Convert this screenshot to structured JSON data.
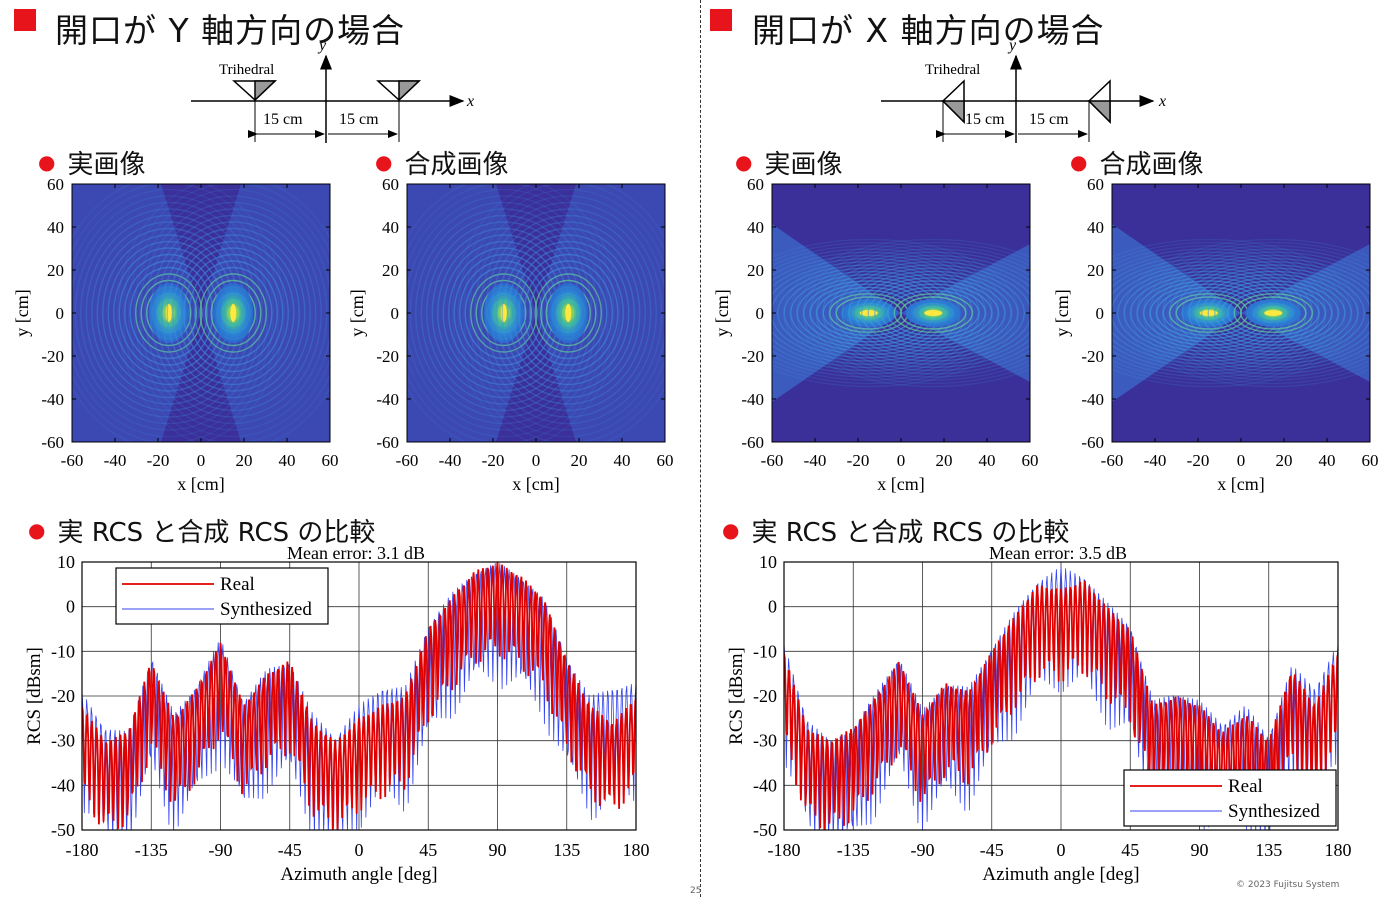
{
  "left": {
    "heading": "開口が Y 軸方向の場合",
    "diagram": {
      "target_label": "Trihedral",
      "dist1": "15 cm",
      "dist2": "15 cm",
      "x_axis": "x",
      "y_axis": "y"
    },
    "real_label": "実画像",
    "synth_label": "合成画像",
    "compare_label": "実 RCS と合成 RCS の比較",
    "mean_error": "Mean error: 3.1 dB"
  },
  "right": {
    "heading": "開口が X 軸方向の場合",
    "diagram": {
      "target_label": "Trihedral",
      "dist1": "15 cm",
      "dist2": "15 cm",
      "x_axis": "x",
      "y_axis": "y"
    },
    "real_label": "実画像",
    "synth_label": "合成画像",
    "compare_label": "実 RCS と合成 RCS の比較",
    "mean_error": "Mean error: 3.5 dB"
  },
  "image_axes": {
    "xlabel": "x [cm]",
    "ylabel": "y [cm]",
    "ticks": [
      "-60",
      "-40",
      "-20",
      "0",
      "20",
      "40",
      "60"
    ],
    "yticks": [
      "60",
      "40",
      "20",
      "0",
      "-20",
      "-40",
      "-60"
    ]
  },
  "footer": {
    "page_number": "25",
    "copyright": "© 2023 Fujitsu System"
  },
  "colors": {
    "real": "#e00000",
    "synth": "#3344ee",
    "bullet": "#e8141c",
    "image_bg": "#3b2f9a"
  },
  "chart_data": [
    {
      "type": "line",
      "title": "Mean error: 3.1 dB",
      "xlabel": "Azimuth angle [deg]",
      "ylabel": "RCS [dBsm]",
      "xlim": [
        -180,
        180
      ],
      "ylim": [
        -50,
        10
      ],
      "xticks": [
        "-180",
        "-135",
        "-90",
        "-45",
        "0",
        "45",
        "90",
        "135",
        "180"
      ],
      "yticks": [
        "10",
        "0",
        "-10",
        "-20",
        "-30",
        "-40",
        "-50"
      ],
      "legend": "top-left",
      "series": [
        {
          "name": "Real",
          "x": [
            -180,
            -165,
            -150,
            -135,
            -120,
            -105,
            -90,
            -75,
            -60,
            -45,
            -30,
            -15,
            0,
            15,
            30,
            45,
            60,
            75,
            90,
            105,
            120,
            135,
            150,
            165,
            180
          ],
          "values": [
            -22,
            -30,
            -28,
            -12,
            -25,
            -18,
            -8,
            -22,
            -15,
            -12,
            -26,
            -30,
            -25,
            -22,
            -20,
            -5,
            2,
            8,
            10,
            7,
            2,
            -12,
            -22,
            -26,
            -20
          ]
        },
        {
          "name": "Synthesized",
          "x": [
            -180,
            -165,
            -150,
            -135,
            -120,
            -105,
            -90,
            -75,
            -60,
            -45,
            -30,
            -15,
            0,
            15,
            30,
            45,
            60,
            75,
            90,
            105,
            120,
            135,
            150,
            165,
            180
          ],
          "values": [
            -19,
            -27,
            -28,
            -11,
            -24,
            -17,
            -7,
            -21,
            -14,
            -12,
            -24,
            -29,
            -22,
            -18,
            -18,
            -4,
            3,
            8,
            10,
            7,
            2,
            -11,
            -20,
            -18,
            -17
          ]
        }
      ]
    },
    {
      "type": "line",
      "title": "Mean error: 3.5 dB",
      "xlabel": "Azimuth angle [deg]",
      "ylabel": "RCS [dBsm]",
      "xlim": [
        -180,
        180
      ],
      "ylim": [
        -50,
        10
      ],
      "xticks": [
        "-180",
        "-135",
        "-90",
        "-45",
        "0",
        "45",
        "90",
        "135",
        "180"
      ],
      "yticks": [
        "10",
        "0",
        "-10",
        "-20",
        "-30",
        "-40",
        "-50"
      ],
      "legend": "bottom-right",
      "series": [
        {
          "name": "Real",
          "x": [
            -180,
            -165,
            -150,
            -135,
            -120,
            -105,
            -90,
            -75,
            -60,
            -45,
            -30,
            -15,
            0,
            15,
            30,
            45,
            60,
            75,
            90,
            105,
            120,
            135,
            150,
            165,
            180
          ],
          "values": [
            -10,
            -27,
            -30,
            -27,
            -20,
            -12,
            -24,
            -17,
            -19,
            -10,
            -2,
            5,
            4,
            6,
            0,
            -5,
            -22,
            -20,
            -22,
            -28,
            -24,
            -30,
            -14,
            -22,
            -10
          ]
        },
        {
          "name": "Synthesized",
          "x": [
            -180,
            -165,
            -150,
            -135,
            -120,
            -105,
            -90,
            -75,
            -60,
            -45,
            -30,
            -15,
            0,
            15,
            30,
            45,
            60,
            75,
            90,
            105,
            120,
            135,
            150,
            165,
            180
          ],
          "values": [
            -8,
            -25,
            -30,
            -27,
            -19,
            -11,
            -23,
            -17,
            -18,
            -9,
            -1,
            6,
            9,
            7,
            1,
            -4,
            -21,
            -19,
            -21,
            -26,
            -22,
            -29,
            -13,
            -18,
            -8
          ]
        }
      ]
    }
  ]
}
